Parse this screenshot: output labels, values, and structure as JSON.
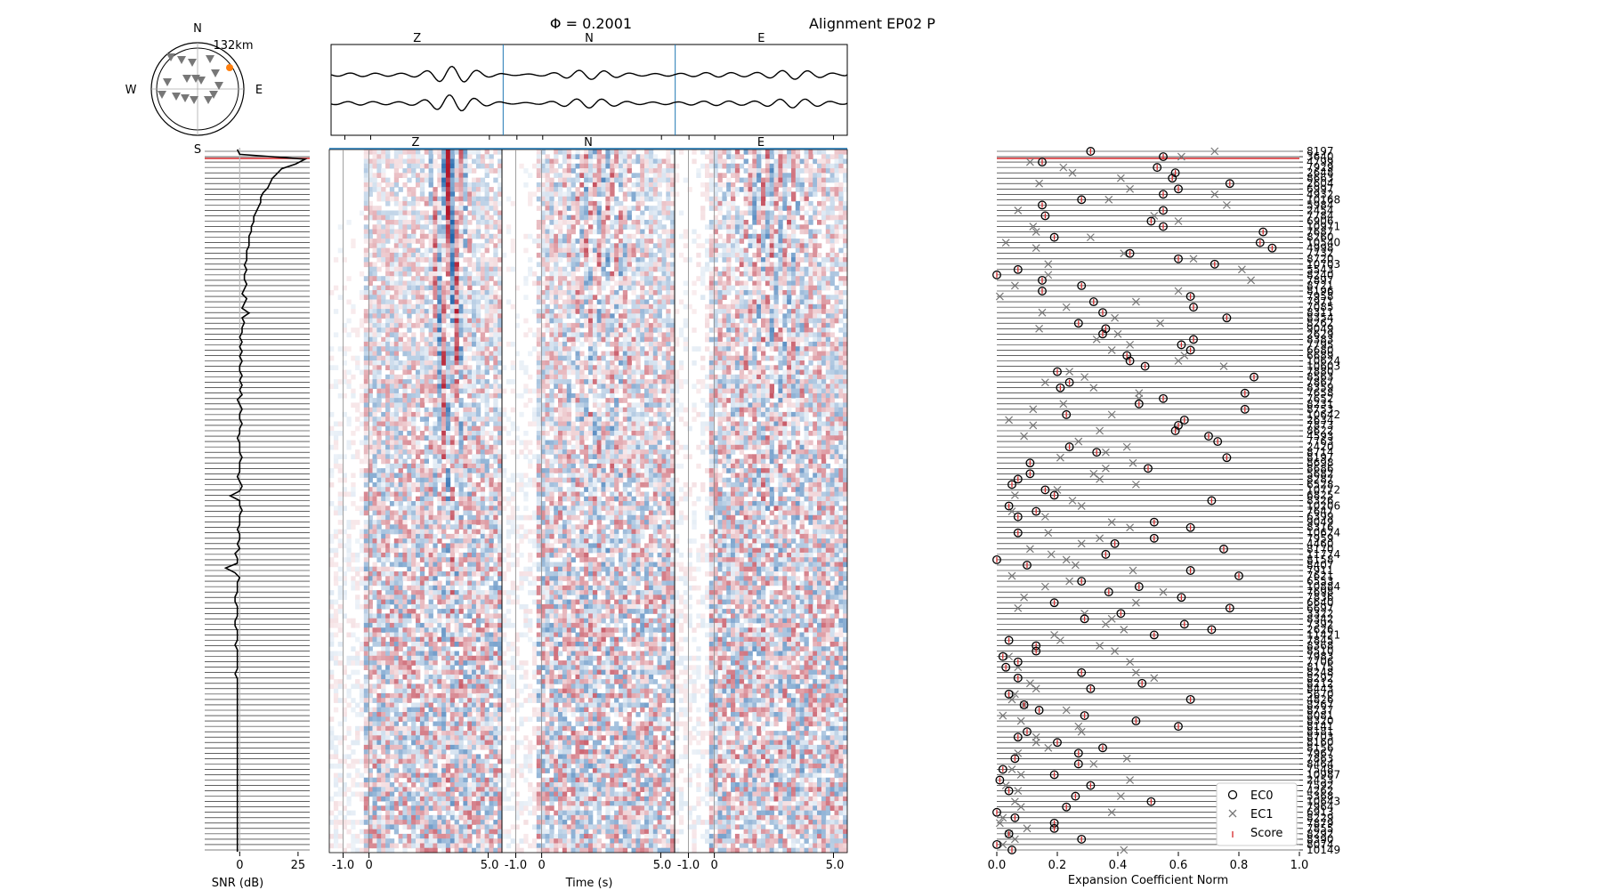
{
  "header": {
    "phi_label": "Φ = 0.2001",
    "title": "Alignment EP02 P"
  },
  "station_map": {
    "north": "N",
    "south": "S",
    "west": "W",
    "east": "E",
    "distance_label": "132km",
    "highlight_color": "#ff7f0e",
    "marker_color": "#777777",
    "station_count": 16
  },
  "components": [
    "Z",
    "N",
    "E"
  ],
  "snr_panel": {
    "xlabel": "SNR (dB)",
    "xticks": [
      "0",
      "25"
    ],
    "xlim": [
      -15,
      30
    ],
    "values": [
      -1,
      0,
      28,
      24,
      18,
      16,
      14,
      13,
      12,
      10,
      9,
      9,
      8,
      7,
      6,
      6,
      5,
      5,
      4,
      4,
      4,
      3,
      3,
      3,
      2,
      3,
      2,
      2,
      3,
      2,
      1,
      3,
      2,
      1,
      4,
      1,
      2,
      1,
      1,
      0,
      1,
      0,
      1,
      0,
      1,
      0,
      0,
      1,
      0,
      1,
      0,
      1,
      -1,
      0,
      1,
      0,
      0,
      1,
      0,
      0,
      -1,
      0,
      0,
      0,
      1,
      0,
      0,
      0,
      -1,
      0,
      1,
      0,
      -4,
      0,
      0,
      1,
      0,
      0,
      0,
      -1,
      0,
      0,
      -1,
      0,
      -2,
      -1,
      -1,
      -6,
      -2,
      0,
      -1,
      -1,
      -1,
      -2,
      -2,
      -1,
      -1,
      -1,
      -2,
      -2,
      -1,
      -1,
      -1,
      -2,
      -1,
      -1,
      -1,
      -1,
      -1,
      -2,
      -1,
      -1,
      -1,
      -1,
      -1,
      -1,
      -1,
      -1,
      -1,
      -1,
      -1,
      -1,
      -1,
      -1,
      -1,
      -1,
      -1,
      -1,
      -1,
      -1,
      -1,
      -1,
      -1,
      -1,
      -1,
      -1,
      -1,
      -1,
      -1,
      -1,
      -1,
      -1,
      -1,
      -1,
      -1,
      -1,
      -1
    ],
    "line_color": "#000000",
    "reference_color": "#bbbbbb"
  },
  "waveform_panel": {
    "xlabel": "Time (s)",
    "tick_labels": [
      "-1.0",
      "0",
      "5.0"
    ],
    "row_count": 150,
    "cmap_positive": "#b2182b",
    "cmap_negative": "#2166ac",
    "marker_color": "#1f77b4"
  },
  "chart_data": {
    "type": "scatter",
    "xlabel": "Expansion Coefficient Norm",
    "xlim": [
      0,
      1
    ],
    "xticks": [
      "0.0",
      "0.2",
      "0.4",
      "0.6",
      "0.8",
      "1.0"
    ],
    "highlight_color": "#d62728",
    "legend": {
      "placement": "lower-right",
      "entries": [
        "EC0",
        "EC1",
        "Score"
      ]
    },
    "station_labels": [
      "8197",
      "3640",
      "4799",
      "7929",
      "2648",
      "8663",
      "2604",
      "6997",
      "4932",
      "10168",
      "5984",
      "2454",
      "7784",
      "6906",
      "10971",
      "7687",
      "8260",
      "10540",
      "4998",
      "7732",
      "8720",
      "10703",
      "5543",
      "8240",
      "7897",
      "8721",
      "8196",
      "7958",
      "7971",
      "7085",
      "8311",
      "8354",
      "8262",
      "9049",
      "2629",
      "8383",
      "7795",
      "6680",
      "6689",
      "10624",
      "10603",
      "7880",
      "8563",
      "7867",
      "8359",
      "7658",
      "7652",
      "8231",
      "8753",
      "10642",
      "2634",
      "7873",
      "8622",
      "4593",
      "7763",
      "2420",
      "8714",
      "8197",
      "8698",
      "8686",
      "5682",
      "8287",
      "6528",
      "10772",
      "6825",
      "8326",
      "10206",
      "7647",
      "6399",
      "9049",
      "8316",
      "10624",
      "7959",
      "4460",
      "8170",
      "11774",
      "8158",
      "8407",
      "7911",
      "7621",
      "6553",
      "10884",
      "7698",
      "7836",
      "6640",
      "6697",
      "3322",
      "8342",
      "7392",
      "2626",
      "11421",
      "7845",
      "8368",
      "8510",
      "7983",
      "7706",
      "8175",
      "8248",
      "8292",
      "8212",
      "8443",
      "5670",
      "4826",
      "8267",
      "8737",
      "8081",
      "8320",
      "8141",
      "8181",
      "8703",
      "8160",
      "8156",
      "7967",
      "7863",
      "8464",
      "7548",
      "10987",
      "2453",
      "7592",
      "4262",
      "5368",
      "10643",
      "7964",
      "6913",
      "8229",
      "7879",
      "7855",
      "8292",
      "8390",
      "8074",
      "10149"
    ],
    "series": [
      {
        "name": "EC0",
        "marker": "circle",
        "values": [
          0.31,
          0.55,
          0.15,
          0.53,
          0.59,
          0.58,
          0.77,
          0.6,
          0.55,
          0.28,
          0.15,
          0.55,
          0.16,
          0.51,
          0.55,
          0.88,
          0.19,
          0.87,
          0.91,
          0.44,
          0.6,
          0.72,
          0.07,
          0.0,
          0.15,
          0.28,
          0.15,
          0.64,
          0.32,
          0.65,
          0.35,
          0.76,
          0.27,
          0.36,
          0.35,
          0.65,
          0.61,
          0.64,
          0.43,
          0.44,
          0.49,
          0.2,
          0.85,
          0.24,
          0.21,
          0.82,
          0.55,
          0.47,
          0.82,
          0.23,
          0.62,
          0.6,
          0.59,
          0.7,
          0.73,
          0.24,
          0.33,
          0.76,
          0.11,
          0.5,
          0.11,
          0.07,
          0.05,
          0.16,
          0.19,
          0.71,
          0.04,
          0.13,
          0.07,
          0.52,
          0.64,
          0.07,
          0.52,
          0.39,
          0.75,
          0.36,
          0.0,
          0.1,
          0.64,
          0.8,
          0.28,
          0.47,
          0.37,
          0.61,
          0.19,
          0.77,
          0.41,
          0.29,
          0.62,
          0.71,
          0.52,
          0.04,
          0.13,
          0.13,
          0.02,
          0.07,
          0.03,
          0.28,
          0.07,
          0.48,
          0.31,
          0.04,
          0.64,
          0.09,
          0.14,
          0.29,
          0.46,
          0.6,
          0.1,
          0.07,
          0.2,
          0.35,
          0.27,
          0.06,
          0.27,
          0.02,
          0.19,
          0.01,
          0.31,
          0.04,
          0.26,
          0.51,
          0.23,
          0.0,
          0.06,
          0.19,
          0.19,
          0.04,
          0.28,
          0.0,
          0.05
        ]
      },
      {
        "name": "EC1",
        "marker": "x",
        "values": [
          0.72,
          0.61,
          0.11,
          0.22,
          0.25,
          0.41,
          0.14,
          0.44,
          0.72,
          0.37,
          0.76,
          0.07,
          0.52,
          0.6,
          0.12,
          0.13,
          0.31,
          0.03,
          0.13,
          0.42,
          0.65,
          0.17,
          0.81,
          0.17,
          0.84,
          0.06,
          0.6,
          0.01,
          0.46,
          0.23,
          0.15,
          0.39,
          0.54,
          0.14,
          0.4,
          0.33,
          0.44,
          0.38,
          0.62,
          0.6,
          0.75,
          0.24,
          0.29,
          0.16,
          0.32,
          0.47,
          0.47,
          0.22,
          0.12,
          0.38,
          0.04,
          0.12,
          0.34,
          0.09,
          0.27,
          0.43,
          0.36,
          0.21,
          0.45,
          0.36,
          0.32,
          0.34,
          0.46,
          0.2,
          0.06,
          0.25,
          0.28,
          0.05,
          0.16,
          0.38,
          0.44,
          0.17,
          0.34,
          0.28,
          0.11,
          0.18,
          0.23,
          0.26,
          0.45,
          0.05,
          0.24,
          0.16,
          0.55,
          0.09,
          0.46,
          0.07,
          0.29,
          0.38,
          0.36,
          0.42,
          0.19,
          0.21,
          0.34,
          0.39,
          0.04,
          0.44,
          0.07,
          0.46,
          0.52,
          0.11,
          0.13,
          0.06,
          0.05,
          0.09,
          0.23,
          0.02,
          0.08,
          0.27,
          0.28,
          0.13,
          0.13,
          0.17,
          0.07,
          0.43,
          0.32,
          0.05,
          0.08,
          0.44,
          0.03,
          0.07,
          0.41,
          0.06,
          0.08,
          0.38,
          0.02,
          0.01,
          0.1,
          0.04,
          0.06,
          0.02,
          0.42
        ]
      }
    ]
  }
}
